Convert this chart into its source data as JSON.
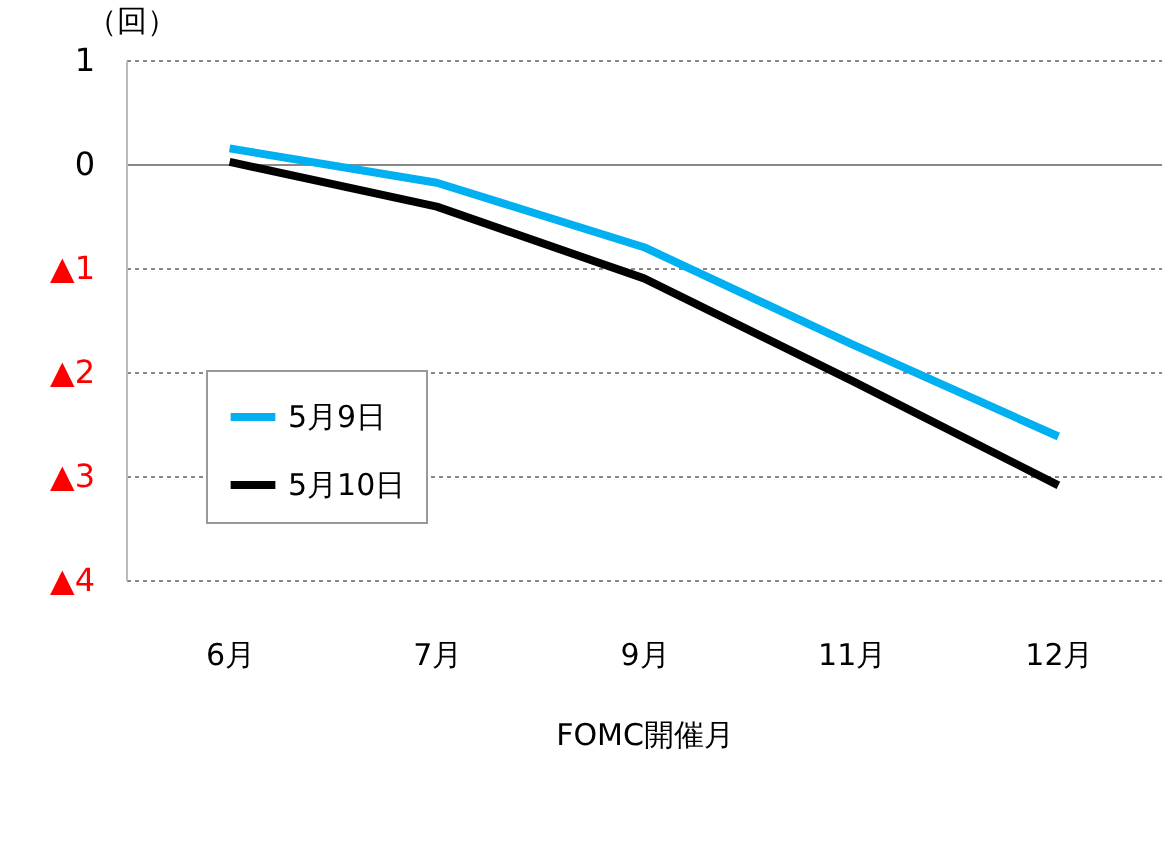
{
  "chart_data": {
    "type": "line",
    "xlabel": "FOMC開催月",
    "ylabel": "（回）",
    "categories": [
      "6月",
      "7月",
      "9月",
      "11月",
      "12月"
    ],
    "series": [
      {
        "name": "5月9日",
        "color": "#00b0f0",
        "values": [
          0.15,
          -0.18,
          -0.8,
          -1.73,
          -2.62
        ]
      },
      {
        "name": "5月10日",
        "color": "#000000",
        "values": [
          0.02,
          -0.41,
          -1.1,
          -2.08,
          -3.09
        ]
      }
    ],
    "ylim": [
      -4,
      1
    ],
    "yticks": [
      1,
      0,
      {
        "value": -1,
        "label": "▲1"
      },
      {
        "value": -2,
        "label": "▲2"
      },
      {
        "value": -3,
        "label": "▲3"
      },
      {
        "value": -4,
        "label": "▲4"
      }
    ],
    "grid": "y",
    "legend": "bottom left",
    "marker": "none",
    "line_style": "solid"
  }
}
